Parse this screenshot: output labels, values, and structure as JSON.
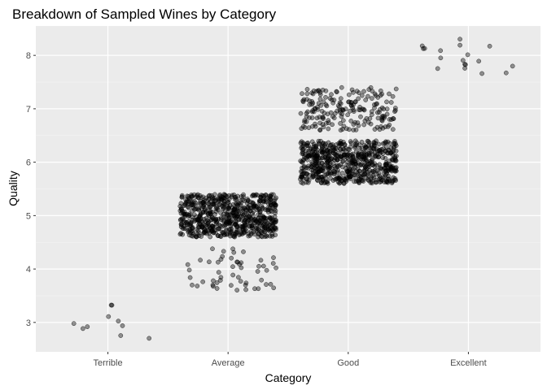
{
  "chart_data": {
    "type": "scatter",
    "title": "Breakdown of Sampled Wines by Category",
    "xlabel": "Category",
    "ylabel": "Quality",
    "categories": [
      "Terrible",
      "Average",
      "Good",
      "Excellent"
    ],
    "yticks": [
      3,
      4,
      5,
      6,
      7,
      8
    ],
    "ylim": [
      2.45,
      8.55
    ],
    "jitter": {
      "width": 0.4,
      "height": 0.4
    },
    "grid": true,
    "legend": "none",
    "colors": {
      "panel": "#ebebeb",
      "grid_major": "#ffffff",
      "grid_minor": "#f5f5f5",
      "point_fill": "#000000",
      "point_fill_opacity": 0.4,
      "point_stroke": "#000000"
    },
    "counts": [
      {
        "category": "Terrible",
        "quality": 3,
        "n": 10
      },
      {
        "category": "Average",
        "quality": 4,
        "n": 53
      },
      {
        "category": "Average",
        "quality": 5,
        "n": 681
      },
      {
        "category": "Good",
        "quality": 6,
        "n": 638
      },
      {
        "category": "Good",
        "quality": 7,
        "n": 199
      },
      {
        "category": "Excellent",
        "quality": 8,
        "n": 18
      }
    ]
  }
}
